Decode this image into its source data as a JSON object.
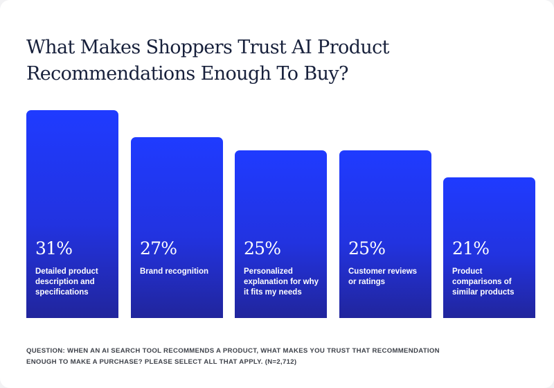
{
  "chart_data": {
    "type": "bar",
    "title_lines": [
      "What Makes Shoppers Trust AI Product",
      "Recommendations Enough To Buy?"
    ],
    "categories": [
      "Detailed product description and specifications",
      "Brand recognition",
      "Personalized explanation for why it fits my needs",
      "Customer reviews or ratings",
      "Product comparisons of similar products"
    ],
    "values": [
      31,
      27,
      25,
      25,
      21
    ],
    "value_labels": [
      "31%",
      "27%",
      "25%",
      "25%",
      "21%"
    ],
    "unit": "%",
    "ylim": [
      0,
      31
    ],
    "grid": false,
    "legend": "none",
    "xlabel": "",
    "ylabel": "",
    "colors": {
      "bar_top": "#1f3bff",
      "bar_bottom": "#21259c",
      "title": "#17203b",
      "background": "#ffffff"
    }
  },
  "footnote": "QUESTION: WHEN AN AI SEARCH TOOL RECOMMENDS A PRODUCT, WHAT MAKES YOU TRUST THAT RECOMMENDATION ENOUGH TO MAKE A PURCHASE? PLEASE SELECT ALL THAT APPLY. (N=2,712)"
}
